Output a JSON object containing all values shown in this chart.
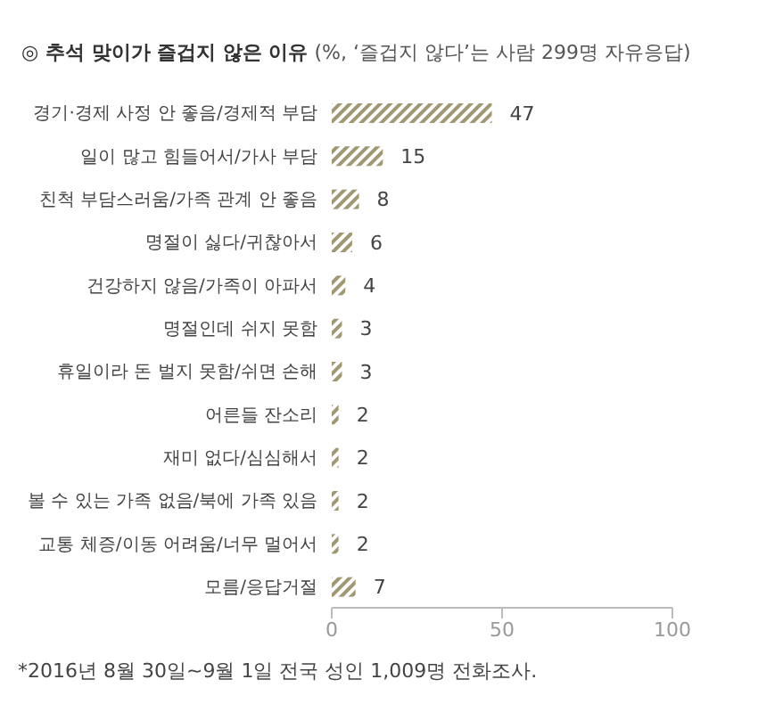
{
  "chart_data": {
    "type": "bar",
    "orientation": "horizontal",
    "title": "◎  추석 맞이가 즐겁지 않은 이유",
    "subtitle": "(%, ‘즐겁지 않다’는 사람 299명 자유응답)",
    "categories": [
      "경기·경제 사정 안 좋음/경제적 부담",
      "일이 많고 힘들어서/가사 부담",
      "친척 부담스러움/가족 관계 안 좋음",
      "명절이 싫다/귀찮아서",
      "건강하지 않음/가족이 아파서",
      "명절인데 쉬지 못함",
      "휴일이라 돈 벌지 못함/쉬면 손해",
      "어른들 잔소리",
      "재미 없다/심심해서",
      "볼 수 있는 가족 없음/북에 가족 있음",
      "교통 체증/이동 어려움/너무 멀어서",
      "모름/응답거절"
    ],
    "values": [
      47,
      15,
      8,
      6,
      4,
      3,
      3,
      2,
      2,
      2,
      2,
      7
    ],
    "color": "#a09773",
    "data_labels": true,
    "xlim": [
      0,
      100
    ],
    "xticks": [
      0,
      50,
      100
    ],
    "grid": false,
    "legend": false,
    "annotations": [
      "*2016년 8월 30일~9월 1일 전국 성인 1,009명 전화조사."
    ]
  }
}
